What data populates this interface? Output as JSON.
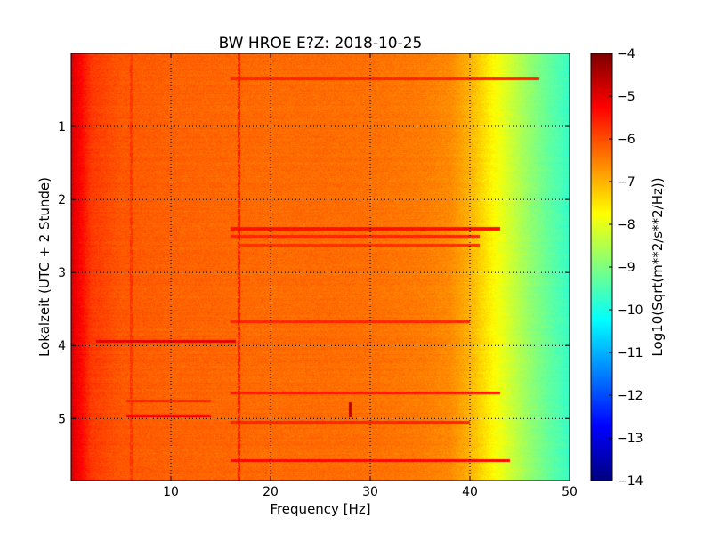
{
  "chart_data": {
    "type": "heatmap",
    "title": "BW HROE E?Z: 2018-10-25",
    "xlabel": "Frequency [Hz]",
    "ylabel": "Lokalzeit (UTC + 2 Stunde)",
    "xlim": [
      0,
      50
    ],
    "ylim": [
      5.85,
      0
    ],
    "x_ticks": [
      10,
      20,
      30,
      40,
      50
    ],
    "y_ticks": [
      1,
      2,
      3,
      4,
      5
    ],
    "grid": true,
    "colorbar": {
      "label": "Log10(Sqrt(m**2/s**2/Hz))",
      "range": [
        -14,
        -4
      ],
      "ticks": [
        -4,
        -5,
        -6,
        -7,
        -8,
        -9,
        -10,
        -11,
        -12,
        -13,
        -14
      ],
      "colormap": "jet"
    },
    "spectral_profile": {
      "frequency_hz": [
        0,
        1,
        2,
        5,
        10,
        15,
        20,
        25,
        30,
        35,
        38,
        40,
        42,
        44,
        46,
        48,
        50
      ],
      "log10_amplitude": [
        -4.9,
        -5.3,
        -5.8,
        -6.1,
        -6.2,
        -6.25,
        -6.3,
        -6.3,
        -6.35,
        -6.45,
        -6.6,
        -7.0,
        -7.6,
        -8.2,
        -8.8,
        -9.3,
        -9.7
      ]
    },
    "features": [
      {
        "type": "line",
        "time": 3.94,
        "freq_from": 2.5,
        "freq_to": 16.5,
        "value": -5.0
      },
      {
        "type": "line",
        "time": 4.97,
        "freq_from": 5.5,
        "freq_to": 14,
        "value": -5.2
      },
      {
        "type": "line",
        "time": 4.76,
        "freq_from": 5.5,
        "freq_to": 14,
        "value": -5.6
      },
      {
        "type": "line",
        "time": 5.58,
        "freq_from": 16,
        "freq_to": 44,
        "value": -5.3
      },
      {
        "type": "line",
        "time": 2.4,
        "freq_from": 16,
        "freq_to": 43,
        "value": -5.4
      },
      {
        "type": "line",
        "time": 2.5,
        "freq_from": 16,
        "freq_to": 41,
        "value": -5.6
      },
      {
        "type": "line",
        "time": 2.63,
        "freq_from": 17,
        "freq_to": 41,
        "value": -5.7
      },
      {
        "type": "line",
        "time": 0.35,
        "freq_from": 16,
        "freq_to": 47,
        "value": -5.6
      },
      {
        "type": "line",
        "time": 3.67,
        "freq_from": 16,
        "freq_to": 40,
        "value": -5.6
      },
      {
        "type": "line",
        "time": 4.65,
        "freq_from": 16,
        "freq_to": 43,
        "value": -5.5
      },
      {
        "type": "line",
        "time": 5.05,
        "freq_from": 16,
        "freq_to": 40,
        "value": -5.6
      },
      {
        "type": "freq_band",
        "freq": 16.8,
        "value": -5.4
      },
      {
        "type": "freq_band",
        "freq": 6.0,
        "value": -5.7
      },
      {
        "type": "spot",
        "time": 4.88,
        "freq": 28.0,
        "value": -4.6
      }
    ]
  }
}
